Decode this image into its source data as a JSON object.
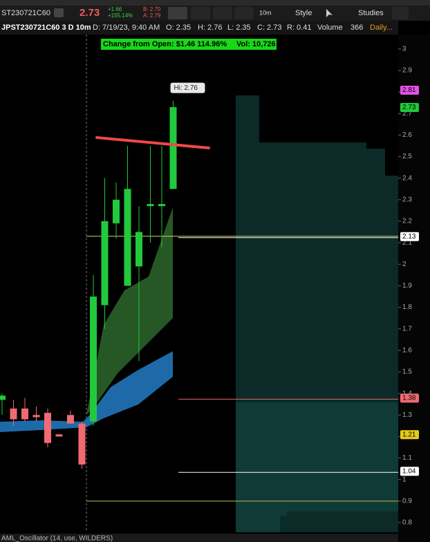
{
  "toolbar": {
    "symbol": "ST230721C60",
    "last": "2.73",
    "change": "+1.66",
    "change_pct": "+155.14%",
    "bid": "B: 2.70",
    "ask": "A: 2.79",
    "timeframe": "10m",
    "style": "Style",
    "studies": "Studies"
  },
  "info_bar": {
    "symbol": "JPST230721C60 3 D 10m",
    "date": "D: 7/19/23, 9:40 AM",
    "open": "O: 2.35",
    "high": "H: 2.76",
    "low": "L: 2.35",
    "close": "C: 2.73",
    "range": "R: 0.41",
    "volume_label": "Volume",
    "volume": "366",
    "daily": "Daily..."
  },
  "banner": {
    "change": "Change from Open:  $1.46  114.96%",
    "vol": "Vol: 10,726"
  },
  "chart_data": {
    "type": "candlestick",
    "high_label": "Hi: 2.76",
    "open": [
      1.37,
      1.33,
      1.33,
      1.3,
      1.31,
      1.21,
      1.3,
      1.26,
      1.27,
      1.81,
      2.19,
      1.9,
      1.99,
      2.27,
      2.27,
      2.35
    ],
    "high": [
      1.4,
      1.37,
      1.38,
      1.34,
      1.33,
      1.21,
      1.32,
      1.27,
      1.95,
      2.4,
      2.38,
      2.55,
      2.27,
      2.55,
      2.55,
      2.76
    ],
    "low": [
      1.3,
      1.25,
      1.27,
      1.27,
      1.15,
      1.2,
      1.26,
      1.05,
      1.25,
      1.7,
      2.12,
      1.9,
      1.55,
      2.1,
      2.08,
      2.35
    ],
    "close": [
      1.39,
      1.28,
      1.28,
      1.29,
      1.17,
      1.2,
      1.26,
      1.07,
      1.85,
      2.2,
      2.3,
      2.35,
      2.15,
      2.28,
      2.28,
      2.73
    ],
    "up_color": "#22c93c",
    "down_color": "#f06a72",
    "ylim": [
      0.755,
      3.067
    ],
    "yticks": [
      0.8,
      0.9,
      1,
      1.1,
      1.2,
      1.3,
      1.4,
      1.5,
      1.6,
      1.7,
      1.8,
      1.9,
      2,
      2.1,
      2.2,
      2.3,
      2.4,
      2.5,
      2.6,
      2.7,
      2.8,
      2.9,
      3
    ],
    "price_labels": [
      {
        "value": 2.81,
        "color": "#e052e6",
        "line": false
      },
      {
        "value": 2.73,
        "color": "#22c93c",
        "line": false
      },
      {
        "value": 2.13,
        "color": "#ffffff",
        "line": true
      },
      {
        "value": 1.38,
        "color": "#f06a72",
        "line": true
      },
      {
        "value": 1.21,
        "color": "#e6cc1a",
        "line": false
      },
      {
        "value": 1.04,
        "color": "#ffffff",
        "line": true
      }
    ],
    "levels": [
      {
        "value": 2.13,
        "color": "#d8d060"
      },
      {
        "value": 0.9,
        "color": "#c8b850"
      }
    ]
  },
  "lower_study": "AML_Oscillator (14, use, WILDERS)"
}
